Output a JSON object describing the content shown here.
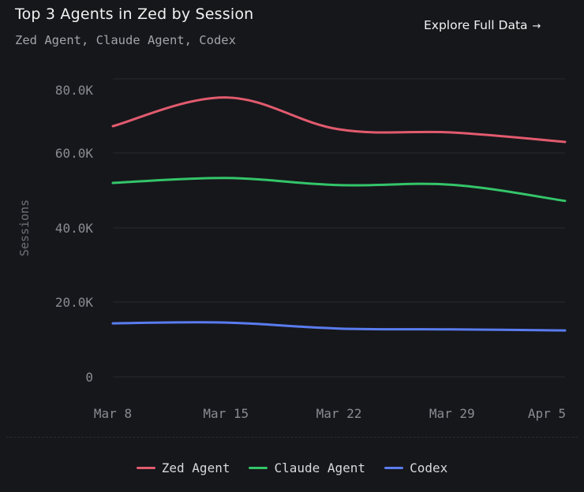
{
  "header": {
    "title": "Top 3 Agents in Zed by Session",
    "subtitle": "Zed Agent, Claude Agent, Codex",
    "explore_label": "Explore Full Data",
    "explore_arrow": "→"
  },
  "colors": {
    "background": "#16171b",
    "grid": "#26282d",
    "axis_text": "#8a8c92",
    "zed_agent": "#e25b6e",
    "claude_agent": "#34c56a",
    "codex": "#5a7cf0"
  },
  "chart_data": {
    "type": "line",
    "title": "Top 3 Agents in Zed by Session",
    "subtitle": "Zed Agent, Claude Agent, Codex",
    "xlabel": "",
    "ylabel": "Sessions",
    "ylim": [
      0,
      80000
    ],
    "x_ticks": [
      "Mar 8",
      "Mar 15",
      "Mar 22",
      "Mar 29",
      "Apr 5"
    ],
    "y_ticks": [
      {
        "value": 0,
        "label": "0"
      },
      {
        "value": 20000,
        "label": "20.0K"
      },
      {
        "value": 40000,
        "label": "40.0K"
      },
      {
        "value": 60000,
        "label": "60.0K"
      },
      {
        "value": 80000,
        "label": "80.0K"
      }
    ],
    "grid": true,
    "legend_position": "bottom",
    "x": [
      0,
      1,
      2,
      3,
      4
    ],
    "series": [
      {
        "name": "Zed Agent",
        "color": "#e25b6e",
        "values": [
          68500,
          77600,
          67500,
          66500,
          63500
        ]
      },
      {
        "name": "Claude Agent",
        "color": "#34c56a",
        "values": [
          52000,
          53300,
          51400,
          51500,
          47200
        ]
      },
      {
        "name": "Codex",
        "color": "#5a7cf0",
        "values": [
          14300,
          14500,
          12900,
          12700,
          12400
        ]
      }
    ]
  }
}
